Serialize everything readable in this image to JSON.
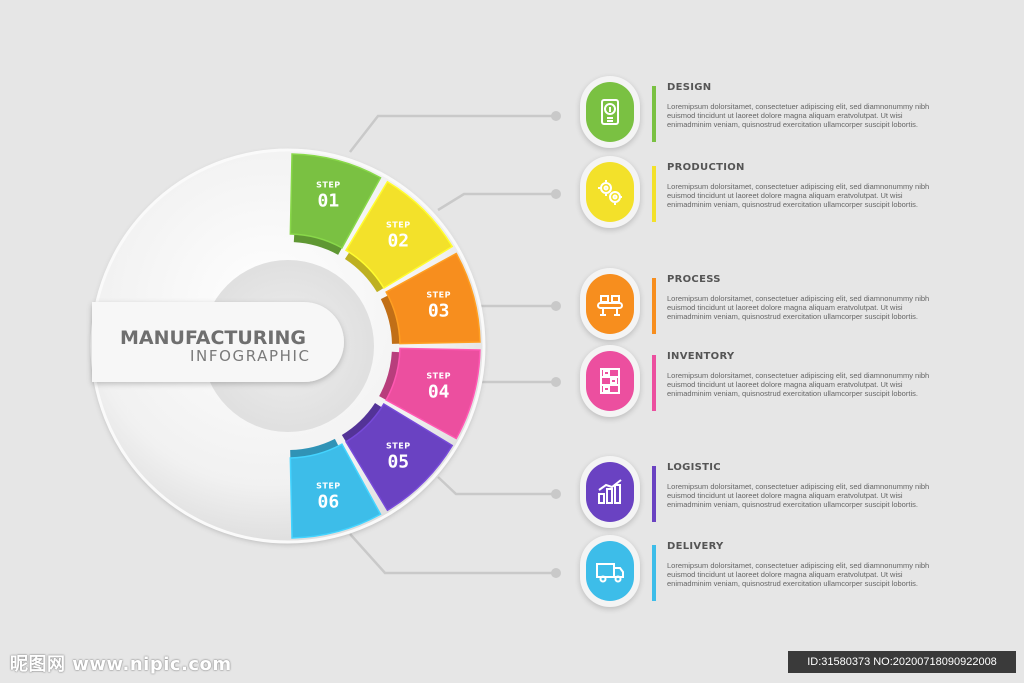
{
  "title": {
    "main": "MANUFACTURING",
    "sub": "INFOGRAPHIC"
  },
  "step_word": "STEP",
  "colors": {
    "background": "#e6e6e6",
    "green": "#7ac142",
    "yellow": "#f3e12a",
    "orange": "#f78e1e",
    "pink": "#ec4f9f",
    "purple": "#6a42c2",
    "blue": "#3dbde9"
  },
  "steps": [
    {
      "number": "01",
      "title": "DESIGN",
      "icon": "lightbulb-icon",
      "color": "#7ac142",
      "desc": "Loremipsum dolorsitamet, consectetuer adipiscing elit, sed diamnonummy nibh euismod tincidunt ut laoreet dolore magna aliquam eratvolutpat. Ut wisi enimadminim veniam, quisnostrud exercitation ullamcorper suscipit lobortis."
    },
    {
      "number": "02",
      "title": "PRODUCTION",
      "icon": "gears-icon",
      "color": "#f3e12a",
      "desc": "Loremipsum dolorsitamet, consectetuer adipiscing elit, sed diamnonummy nibh euismod tincidunt ut laoreet dolore magna aliquam eratvolutpat. Ut wisi enimadminim veniam, quisnostrud exercitation ullamcorper suscipit lobortis."
    },
    {
      "number": "03",
      "title": "PROCESS",
      "icon": "conveyor-icon",
      "color": "#f78e1e",
      "desc": "Loremipsum dolorsitamet, consectetuer adipiscing elit, sed diamnonummy nibh euismod tincidunt ut laoreet dolore magna aliquam eratvolutpat. Ut wisi enimadminim veniam, quisnostrud exercitation ullamcorper suscipit lobortis."
    },
    {
      "number": "04",
      "title": "INVENTORY",
      "icon": "shelves-icon",
      "color": "#ec4f9f",
      "desc": "Loremipsum dolorsitamet, consectetuer adipiscing elit, sed diamnonummy nibh euismod tincidunt ut laoreet dolore magna aliquam eratvolutpat. Ut wisi enimadminim veniam, quisnostrud exercitation ullamcorper suscipit lobortis."
    },
    {
      "number": "05",
      "title": "LOGISTIC",
      "icon": "bar-chart-icon",
      "color": "#6a42c2",
      "desc": "Loremipsum dolorsitamet, consectetuer adipiscing elit, sed diamnonummy nibh euismod tincidunt ut laoreet dolore magna aliquam eratvolutpat. Ut wisi enimadminim veniam, quisnostrud exercitation ullamcorper suscipit lobortis."
    },
    {
      "number": "06",
      "title": "DELIVERY",
      "icon": "truck-icon",
      "color": "#3dbde9",
      "desc": "Loremipsum dolorsitamet, consectetuer adipiscing elit, sed diamnonummy nibh euismod tincidunt ut laoreet dolore magna aliquam eratvolutpat. Ut wisi enimadminim veniam, quisnostrud exercitation ullamcorper suscipit lobortis."
    }
  ],
  "watermark": {
    "left": "昵图网 www.nipic.com",
    "right": "ID:31580373 NO:20200718090922008"
  }
}
